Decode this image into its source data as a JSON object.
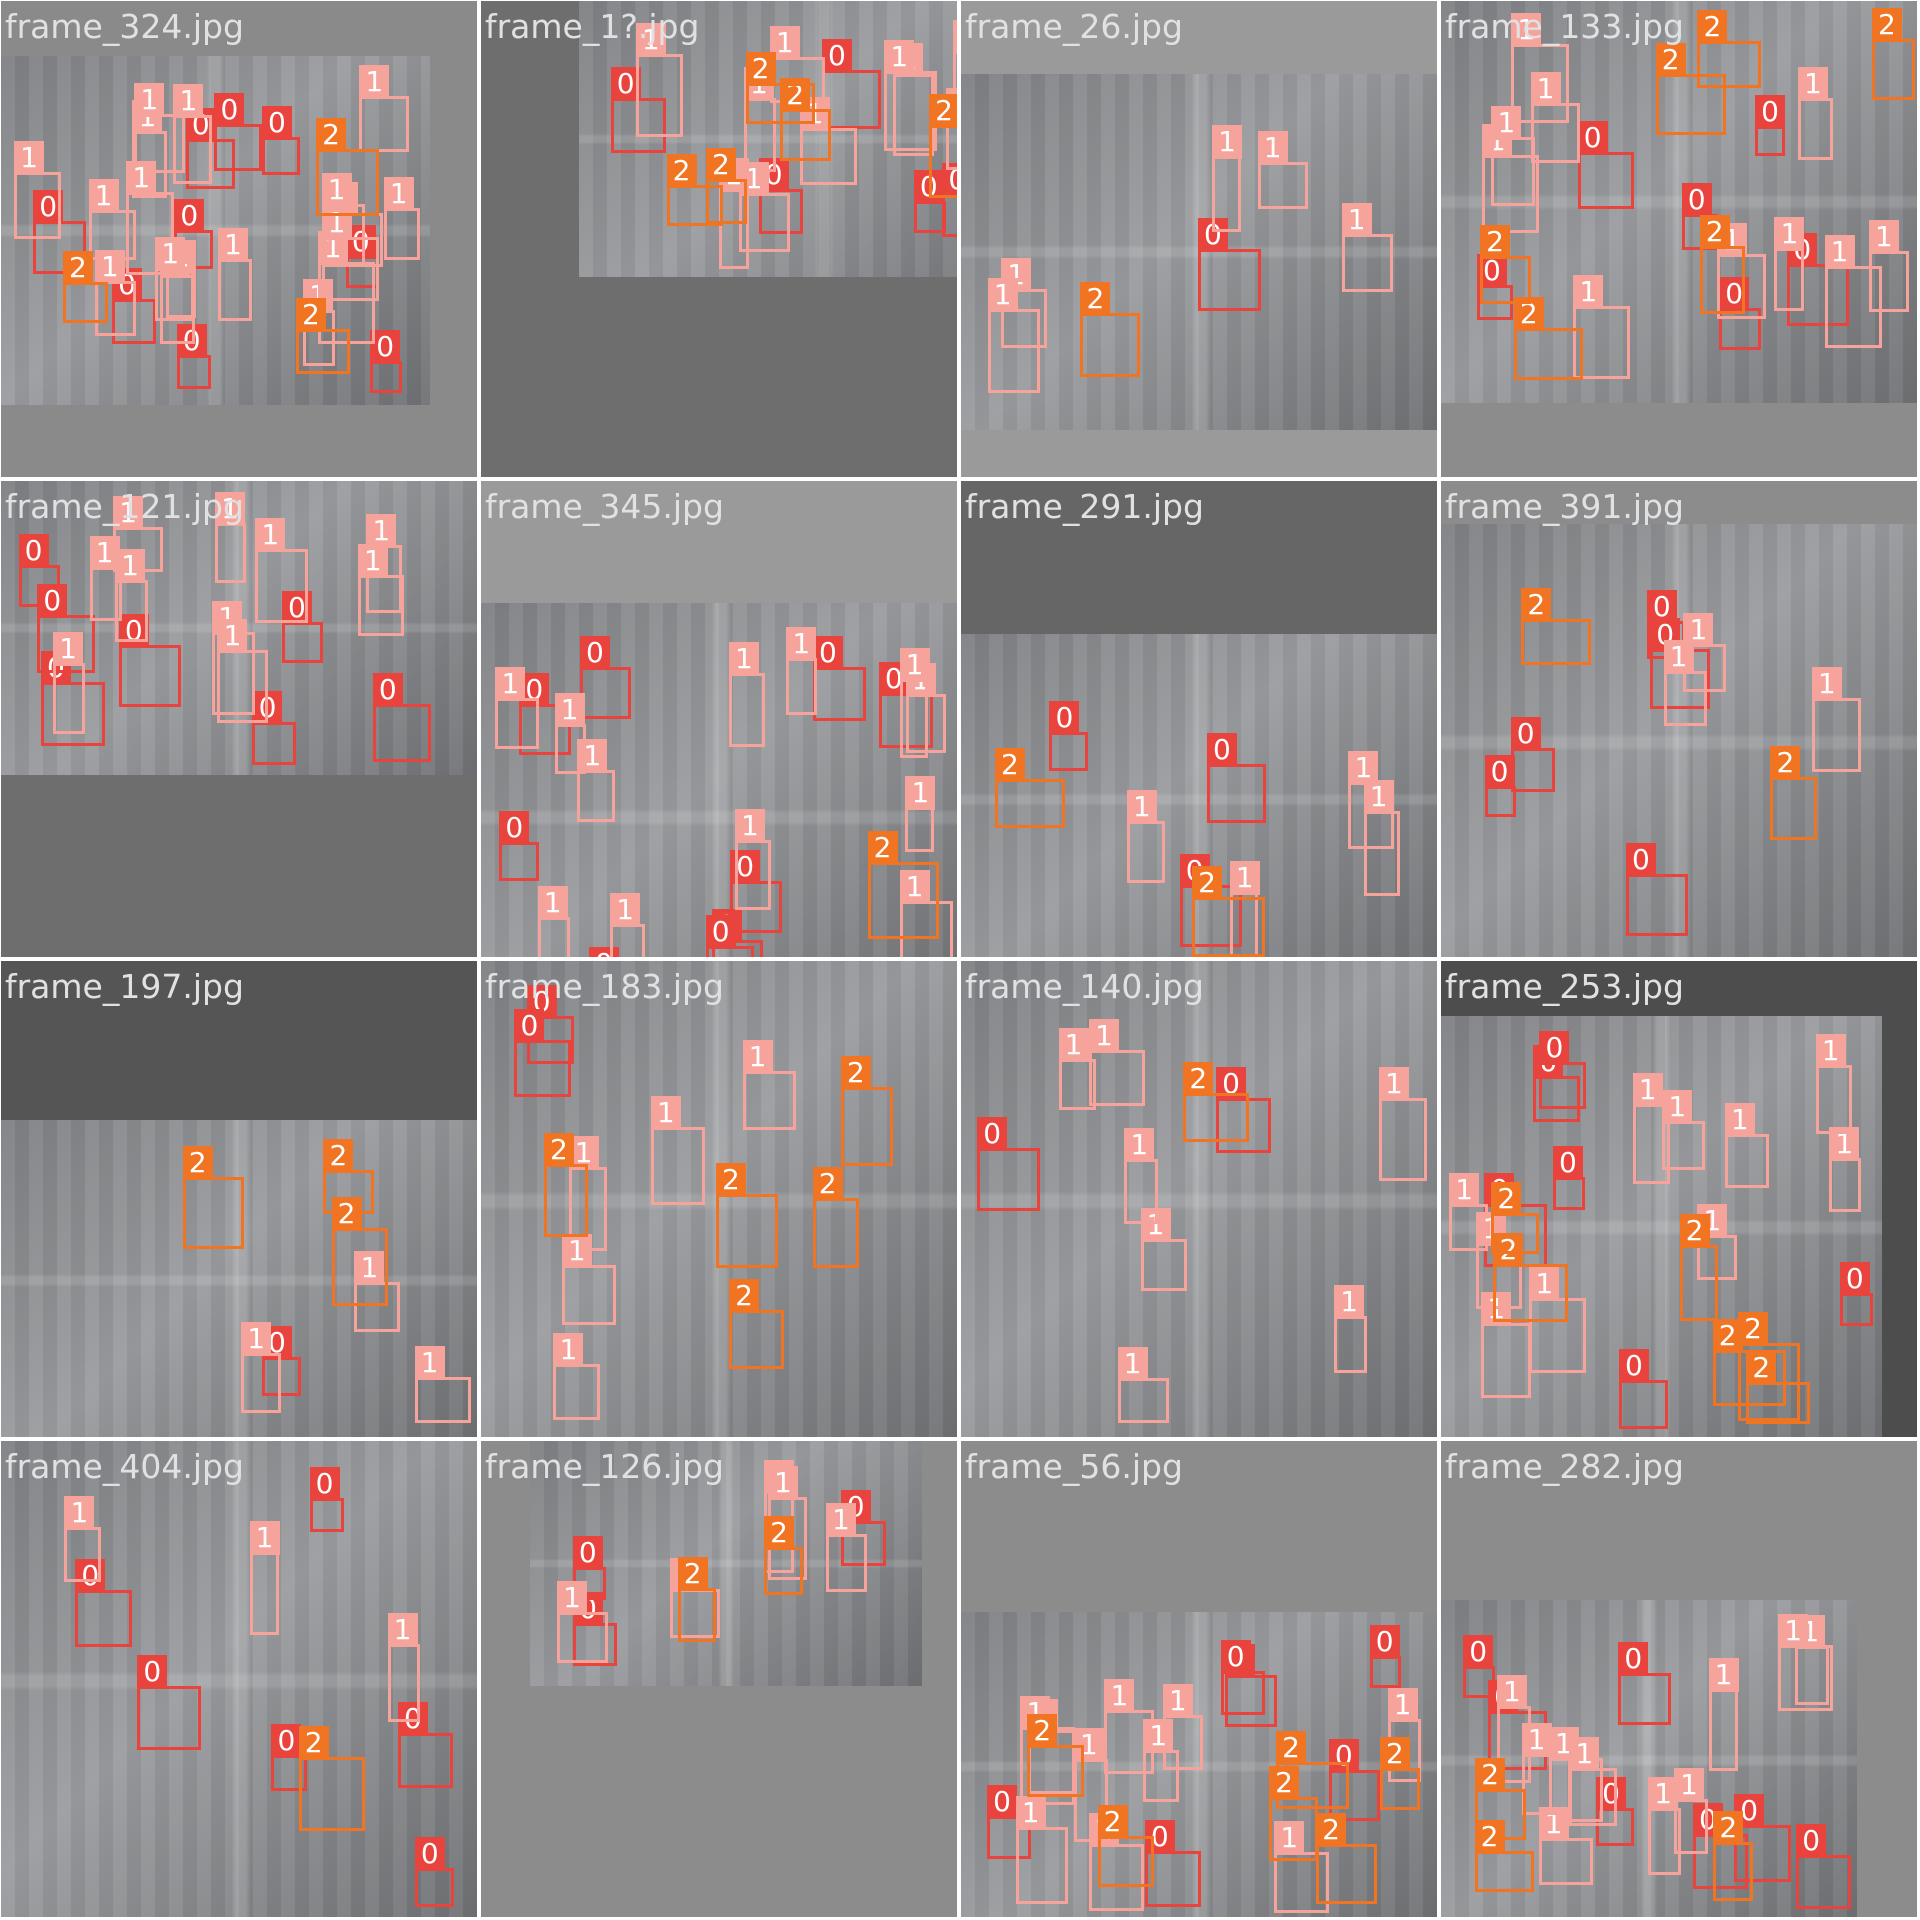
{
  "frames": [
    "frame_324.jpg",
    "frame_1?.jpg",
    "frame_26.jpg",
    "frame_133.jpg",
    "frame_121.jpg",
    "frame_345.jpg",
    "frame_291.jpg",
    "frame_391.jpg",
    "frame_197.jpg",
    "frame_183.jpg",
    "frame_140.jpg",
    "frame_253.jpg",
    "frame_404.jpg",
    "frame_126.jpg",
    "frame_56.jpg",
    "frame_282.jpg"
  ],
  "classes": {
    "0": {
      "color": "#e8433d"
    },
    "1": {
      "color": "#f6a39b"
    },
    "2": {
      "color": "#f07422"
    }
  },
  "detections": [
    {
      "frame": 0,
      "labels": [
        "0",
        "0",
        "0",
        "0",
        "0",
        "0",
        "0",
        "0",
        "0",
        "1",
        "1",
        "1",
        "1",
        "1",
        "1",
        "1",
        "1",
        "1",
        "1",
        "1",
        "1",
        "1",
        "1",
        "1",
        "1",
        "1",
        "1",
        "2",
        "2",
        "2"
      ]
    },
    {
      "frame": 1,
      "labels": [
        "0",
        "0",
        "0",
        "0",
        "0",
        "1",
        "1",
        "1",
        "1",
        "1",
        "1",
        "1",
        "1",
        "1",
        "1",
        "1",
        "2",
        "2",
        "2",
        "2",
        "2"
      ]
    },
    {
      "frame": 2,
      "labels": [
        "0",
        "1",
        "1",
        "1",
        "1",
        "1",
        "2"
      ]
    },
    {
      "frame": 3,
      "labels": [
        "0",
        "0",
        "0",
        "0",
        "0",
        "0",
        "1",
        "1",
        "1",
        "1",
        "1",
        "1",
        "1",
        "1",
        "1",
        "1",
        "2",
        "2",
        "2",
        "2",
        "2",
        "2"
      ]
    },
    {
      "frame": 4,
      "labels": [
        "0",
        "0",
        "0",
        "0",
        "0",
        "0",
        "0",
        "1",
        "1",
        "1",
        "1",
        "1",
        "1",
        "1",
        "1",
        "1",
        "1"
      ]
    },
    {
      "frame": 5,
      "labels": [
        "0",
        "0",
        "0",
        "0",
        "0",
        "0",
        "0",
        "0",
        "0",
        "1",
        "1",
        "1",
        "1",
        "1",
        "1",
        "1",
        "1",
        "1",
        "1",
        "1",
        "1",
        "2"
      ]
    },
    {
      "frame": 6,
      "labels": [
        "0",
        "0",
        "0",
        "1",
        "1",
        "1",
        "1",
        "2",
        "2"
      ]
    },
    {
      "frame": 7,
      "labels": [
        "0",
        "0",
        "0",
        "0",
        "0",
        "1",
        "1",
        "1",
        "2",
        "2"
      ]
    },
    {
      "frame": 8,
      "labels": [
        "0",
        "1",
        "1",
        "1",
        "2",
        "2",
        "2"
      ]
    },
    {
      "frame": 9,
      "labels": [
        "0",
        "0",
        "1",
        "1",
        "1",
        "1",
        "1",
        "2",
        "2",
        "2",
        "2",
        "2"
      ]
    },
    {
      "frame": 10,
      "labels": [
        "0",
        "0",
        "1",
        "1",
        "1",
        "1",
        "1",
        "1",
        "1",
        "2"
      ]
    },
    {
      "frame": 11,
      "labels": [
        "0",
        "0",
        "0",
        "0",
        "0",
        "0",
        "1",
        "1",
        "1",
        "1",
        "1",
        "1",
        "1",
        "1",
        "1",
        "1",
        "2",
        "2",
        "2",
        "2",
        "2",
        "2"
      ]
    },
    {
      "frame": 12,
      "labels": [
        "0",
        "0",
        "0",
        "0",
        "0",
        "0",
        "1",
        "1",
        "1",
        "2"
      ]
    },
    {
      "frame": 13,
      "labels": [
        "0",
        "0",
        "0",
        "1",
        "1",
        "1",
        "1",
        "1",
        "2",
        "2"
      ]
    },
    {
      "frame": 14,
      "labels": [
        "0",
        "0",
        "0",
        "0",
        "0",
        "0",
        "1",
        "1",
        "1",
        "1",
        "1",
        "1",
        "1",
        "1",
        "1",
        "1",
        "2",
        "2",
        "2",
        "2",
        "2",
        "2"
      ]
    },
    {
      "frame": 15,
      "labels": [
        "0",
        "0",
        "0",
        "0",
        "0",
        "0",
        "0",
        "1",
        "1",
        "1",
        "1",
        "1",
        "1",
        "1",
        "1",
        "1",
        "1",
        "2",
        "2",
        "2"
      ]
    }
  ]
}
